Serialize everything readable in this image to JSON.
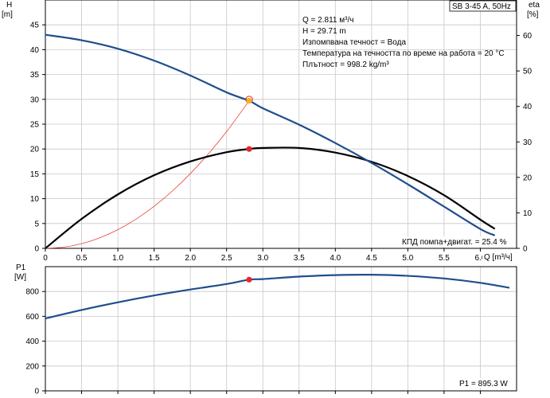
{
  "chart_data": [
    {
      "type": "line",
      "title": "SB 3-45 A, 50Hz",
      "y_axis_left": {
        "label_name": "H",
        "label_unit": "[m]",
        "ticks": [
          0,
          5,
          10,
          15,
          20,
          25,
          30,
          35,
          40,
          45
        ],
        "ylim": [
          0,
          50
        ]
      },
      "y_axis_right": {
        "label_name": "eta",
        "label_unit": "[%]",
        "ticks": [
          0,
          10,
          20,
          30,
          40,
          50,
          60
        ],
        "ylim": [
          0,
          70
        ]
      },
      "x_axis": {
        "label": "Q [m³/ч]",
        "ticks": [
          "0",
          "0.5",
          "1.0",
          "1.5",
          "2.0",
          "2.5",
          "3.0",
          "3.5",
          "4.0",
          "4.5",
          "5.0",
          "5.5",
          "6.0"
        ],
        "xlim": [
          0,
          6.5
        ]
      },
      "grid": "on",
      "series": [
        {
          "name": "H",
          "axis": "left",
          "color": "#1f4e8c",
          "x": [
            0,
            0.5,
            1.0,
            1.5,
            2.0,
            2.5,
            2.811,
            3.0,
            3.5,
            4.0,
            4.5,
            5.0,
            5.5,
            6.0,
            6.2
          ],
          "y": [
            43.0,
            41.9,
            40.2,
            37.8,
            34.8,
            31.4,
            29.71,
            28.2,
            24.9,
            21.2,
            17.2,
            12.9,
            8.4,
            3.9,
            2.6
          ]
        },
        {
          "name": "eta",
          "axis": "right",
          "color": "#000000",
          "x": [
            0,
            0.5,
            1.0,
            1.5,
            2.0,
            2.5,
            2.811,
            3.0,
            3.5,
            4.0,
            4.5,
            5.0,
            5.5,
            6.0,
            6.2
          ],
          "y": [
            0,
            8.3,
            15.2,
            20.6,
            24.5,
            27.1,
            28.0,
            28.3,
            28.3,
            27.0,
            24.4,
            20.4,
            15.0,
            8.1,
            5.5
          ]
        },
        {
          "name": "system",
          "axis": "left",
          "color": "#e8403a",
          "x": [
            0,
            0.25,
            0.5,
            0.75,
            1.0,
            1.25,
            1.5,
            1.75,
            2.0,
            2.25,
            2.5,
            2.811
          ],
          "y": [
            0,
            0.24,
            0.94,
            2.12,
            3.76,
            5.88,
            8.47,
            11.52,
            15.05,
            19.05,
            23.51,
            29.71
          ]
        }
      ],
      "markers": [
        {
          "series": "H",
          "x": 2.811,
          "y": 29.71,
          "color": "#f2b21b"
        },
        {
          "series": "eta",
          "x": 2.811,
          "y": 28.0,
          "color": "#e8262a"
        }
      ],
      "info_box": [
        "Q = 2.811 м³/ч",
        "H = 29.71 m",
        "Изпомпвана течност = Вода",
        "Температура на течността по време на работа = 20 °C",
        "Плътност = 998.2 kg/m³"
      ],
      "efficiency_note": "КПД помпа+двигат. = 25.4 %"
    },
    {
      "type": "line",
      "y_axis_left": {
        "label_name": "P1",
        "label_unit": "[W]",
        "ticks": [
          0,
          200,
          400,
          600,
          800
        ],
        "ylim": [
          0,
          1000
        ]
      },
      "x_axis": {
        "xlim": [
          0,
          6.5
        ]
      },
      "grid": "on",
      "series": [
        {
          "name": "P1",
          "color": "#1f4e8c",
          "x": [
            0,
            0.5,
            1.0,
            1.5,
            2.0,
            2.5,
            2.811,
            3.0,
            3.5,
            4.0,
            4.5,
            5.0,
            5.5,
            6.0,
            6.4
          ],
          "y": [
            583,
            651,
            713,
            768,
            816,
            860,
            895.3,
            900,
            920,
            932,
            935,
            926,
            905,
            870,
            830
          ]
        }
      ],
      "markers": [
        {
          "series": "P1",
          "x": 2.811,
          "y": 895.3,
          "color": "#e8262a"
        }
      ],
      "power_note": "P1 = 895.3 W"
    }
  ]
}
